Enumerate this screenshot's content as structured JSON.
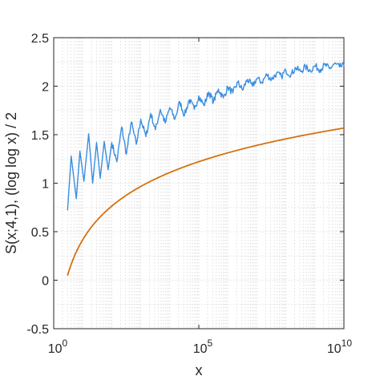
{
  "chart_data": {
    "type": "line",
    "title": "",
    "xlabel": "x",
    "ylabel": "S(x;4,1),  (log log x) / 2",
    "xscale": "log",
    "xlim": [
      1,
      10000000000
    ],
    "ylim": [
      -0.5,
      2.5
    ],
    "grid": true,
    "grid_style": "dotted",
    "legend": "none",
    "x_ticks": [
      {
        "value": 1,
        "base": "10",
        "exp": "0"
      },
      {
        "value": 100000,
        "base": "10",
        "exp": "5"
      },
      {
        "value": 10000000000,
        "base": "10",
        "exp": "10"
      }
    ],
    "y_ticks": [
      {
        "value": -0.5,
        "label": "-0.5"
      },
      {
        "value": 0,
        "label": "0"
      },
      {
        "value": 0.5,
        "label": "0.5"
      },
      {
        "value": 1,
        "label": "1"
      },
      {
        "value": 1.5,
        "label": "1.5"
      },
      {
        "value": 2,
        "label": "2"
      },
      {
        "value": 2.5,
        "label": "2.5"
      }
    ],
    "series": [
      {
        "color": "#3a8ee0",
        "points": [
          [
            3,
            0.72
          ],
          [
            4,
            1.28
          ],
          [
            6,
            0.84
          ],
          [
            8,
            1.33
          ],
          [
            11,
            1.02
          ],
          [
            16,
            1.51
          ],
          [
            22,
            1.0
          ],
          [
            30,
            1.42
          ],
          [
            40,
            1.05
          ],
          [
            55,
            1.43
          ],
          [
            75,
            1.14
          ],
          [
            100,
            1.42
          ],
          [
            150,
            1.22
          ],
          [
            220,
            1.58
          ],
          [
            320,
            1.3
          ],
          [
            470,
            1.63
          ],
          [
            700,
            1.4
          ],
          [
            1000,
            1.66
          ],
          [
            1500,
            1.48
          ],
          [
            2200,
            1.72
          ],
          [
            3200,
            1.55
          ],
          [
            4700,
            1.76
          ],
          [
            7000,
            1.62
          ],
          [
            10000,
            1.78
          ],
          [
            15000,
            1.66
          ],
          [
            22000,
            1.84
          ],
          [
            32000,
            1.7
          ],
          [
            47000,
            1.86
          ],
          [
            70000,
            1.76
          ],
          [
            100000,
            1.9
          ],
          [
            150000,
            1.8
          ],
          [
            220000,
            1.94
          ],
          [
            320000,
            1.84
          ],
          [
            470000,
            1.97
          ],
          [
            700000,
            1.88
          ],
          [
            1000000,
            1.99
          ],
          [
            1500000,
            1.93
          ],
          [
            2200000,
            2.04
          ],
          [
            3200000,
            1.96
          ],
          [
            4700000,
            2.07
          ],
          [
            7000000,
            2.0
          ],
          [
            10000000,
            2.08
          ],
          [
            15000000,
            2.04
          ],
          [
            22000000,
            2.12
          ],
          [
            32000000,
            2.07
          ],
          [
            47000000,
            2.13
          ],
          [
            70000000,
            2.1
          ],
          [
            100000000,
            2.16
          ],
          [
            150000000,
            2.12
          ],
          [
            220000000,
            2.19
          ],
          [
            320000000,
            2.15
          ],
          [
            470000000,
            2.2
          ],
          [
            700000000,
            2.16
          ],
          [
            1000000000,
            2.21
          ],
          [
            1500000000,
            2.17
          ],
          [
            2200000000,
            2.22
          ],
          [
            3200000000,
            2.18
          ],
          [
            4700000000,
            2.23
          ],
          [
            7000000000,
            2.2
          ],
          [
            10000000000,
            2.21
          ]
        ]
      },
      {
        "color": "#d4720f",
        "formula": "(log log x) / 2",
        "x_start": 3,
        "x_end": 10000000000
      }
    ]
  }
}
